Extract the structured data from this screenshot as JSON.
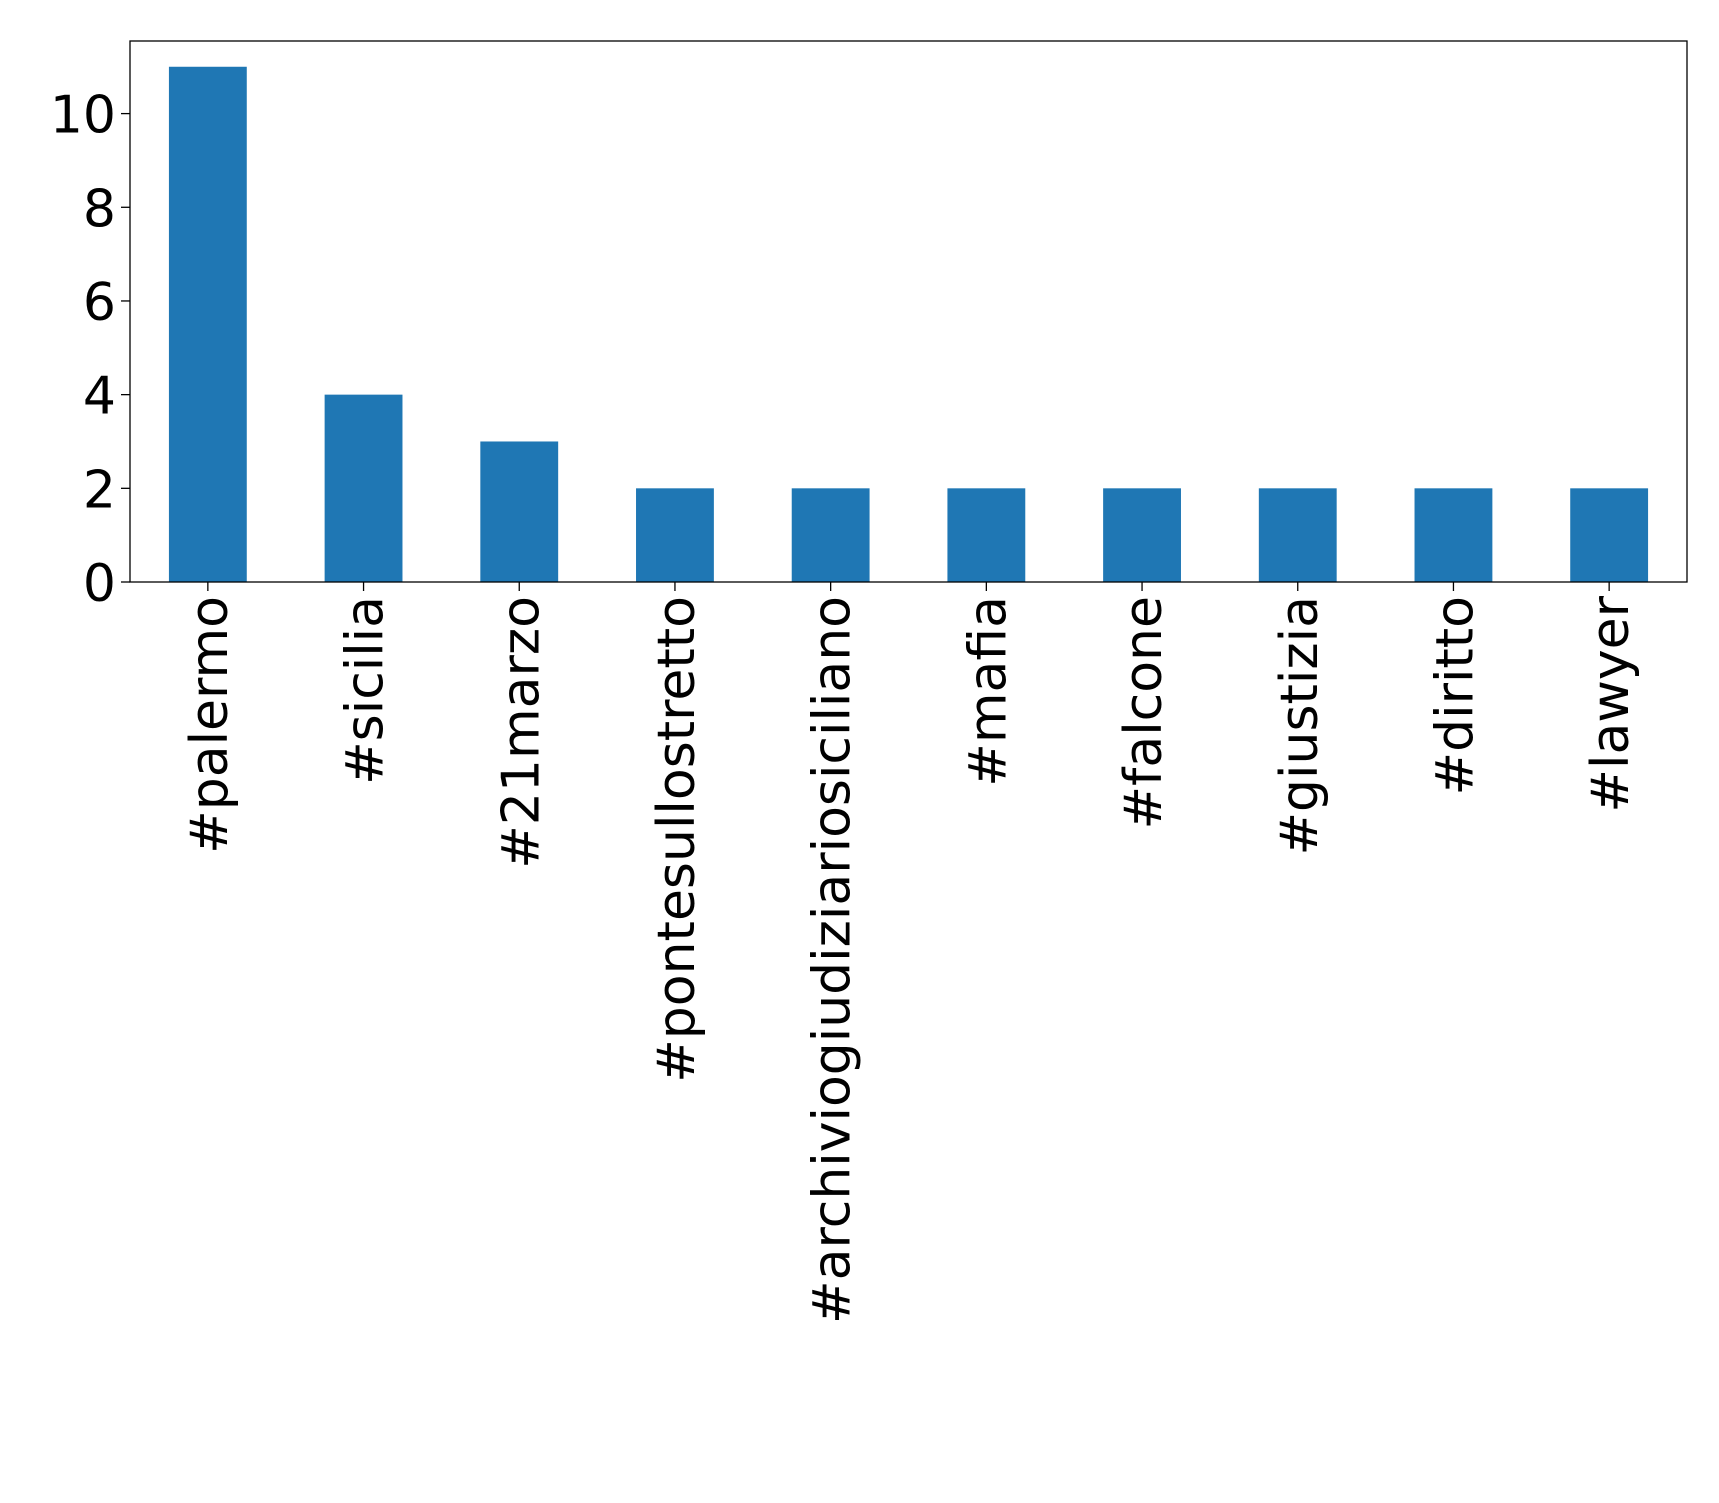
{
  "chart_data": {
    "type": "bar",
    "categories": [
      "#palermo",
      "#sicilia",
      "#21marzo",
      "#pontesullostretto",
      "#archiviogiudiziariosiciliano",
      "#mafia",
      "#falcone",
      "#giustizia",
      "#diritto",
      "#lawyer"
    ],
    "values": [
      11,
      4,
      3,
      2,
      2,
      2,
      2,
      2,
      2,
      2
    ],
    "color": "#1f77b4",
    "ylim": [
      0,
      11.55
    ],
    "yticks": [
      0,
      2,
      4,
      6,
      8,
      10
    ]
  }
}
